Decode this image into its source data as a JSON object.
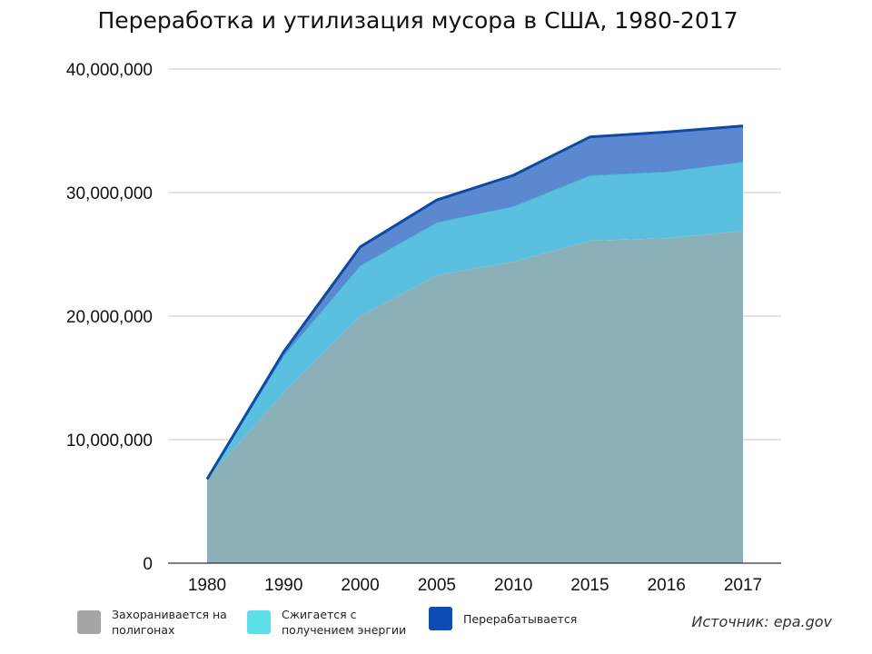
{
  "chart_data": {
    "type": "area",
    "stacked": true,
    "title": "Переработка и утилизация мусора в США, 1980-2017",
    "x": [
      "1980",
      "1990",
      "2000",
      "2005",
      "2010",
      "2015",
      "2016",
      "2017"
    ],
    "series": [
      {
        "name": "Захоранивается на\nполигонах",
        "color": "#a5a5a5",
        "values": [
          6800000,
          13800000,
          20000000,
          23300000,
          24400000,
          26100000,
          26300000,
          26900000
        ]
      },
      {
        "name": "Сжигается с\nполучением энергии",
        "color": "#5ee0e8",
        "values": [
          0,
          3000000,
          4100000,
          4300000,
          4500000,
          5300000,
          5400000,
          5600000
        ]
      },
      {
        "name": "Перерабатывается",
        "color": "#0b4db5",
        "values": [
          0,
          300000,
          1500000,
          1800000,
          2500000,
          3100000,
          3200000,
          2900000
        ]
      }
    ],
    "ylim": [
      0,
      40000000
    ],
    "yticks": [
      0,
      10000000,
      20000000,
      30000000,
      40000000
    ],
    "ytick_labels": [
      "0",
      "10,000,000",
      "20,000,000",
      "30,000,000",
      "40,000,000"
    ],
    "grid": true,
    "legend": "bottom"
  },
  "source": "Источник: epa.gov"
}
